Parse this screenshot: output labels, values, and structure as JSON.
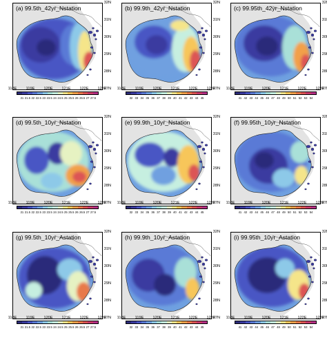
{
  "lat_ticks": [
    "32N",
    "31N",
    "30N",
    "29N",
    "28N",
    "27N"
  ],
  "lon_ticks": [
    "118E",
    "119E",
    "120E",
    "121E",
    "122E",
    "123E"
  ],
  "colormap": [
    "#2c2c7a",
    "#3a3aa0",
    "#4a56c4",
    "#5a7ad6",
    "#6fa0e0",
    "#8dc9e8",
    "#a9e0d8",
    "#c6efe0",
    "#e6f2c2",
    "#f5e58a",
    "#f7c65a",
    "#f2a04a",
    "#e8794a",
    "#dc5554",
    "#c93b6b",
    "#b52f86"
  ],
  "panels": [
    {
      "title": "(a) 99.5th_42yr_Nstation",
      "cbar_labels": [
        "21",
        "21.5",
        "22",
        "22.5",
        "23",
        "23.5",
        "24",
        "24.5",
        "25",
        "25.5",
        "26",
        "26.5",
        "27",
        "27.5"
      ]
    },
    {
      "title": "(b) 99.9th_42yr_Nstation",
      "cbar_labels": [
        "32",
        "33",
        "34",
        "35",
        "36",
        "37",
        "38",
        "39",
        "40",
        "41",
        "42",
        "43",
        "44",
        "45"
      ]
    },
    {
      "title": "(c) 99.95th_42yr_Nstation",
      "cbar_labels": [
        "41",
        "42",
        "43",
        "44",
        "45",
        "46",
        "47",
        "48",
        "49",
        "50",
        "51",
        "52",
        "53",
        "54"
      ]
    },
    {
      "title": "(d) 99.5th_10yr_Nstation",
      "cbar_labels": [
        "21",
        "21.5",
        "22",
        "22.5",
        "23",
        "23.5",
        "24",
        "24.5",
        "25",
        "25.5",
        "26",
        "26.5",
        "27",
        "27.5"
      ]
    },
    {
      "title": "(e) 99.9th_10yr_Nstation",
      "cbar_labels": [
        "32",
        "33",
        "34",
        "35",
        "36",
        "37",
        "38",
        "39",
        "40",
        "41",
        "42",
        "43",
        "44",
        "45"
      ]
    },
    {
      "title": "(f) 99.95th_10yr_Nstation",
      "cbar_labels": [
        "41",
        "42",
        "43",
        "44",
        "45",
        "46",
        "47",
        "48",
        "49",
        "50",
        "51",
        "52",
        "53",
        "54"
      ]
    },
    {
      "title": "(g) 99.5th_10yr_Astation",
      "cbar_labels": [
        "21",
        "21.5",
        "22",
        "22.5",
        "23",
        "23.5",
        "24",
        "24.5",
        "25",
        "25.5",
        "26",
        "26.5",
        "27",
        "27.5"
      ]
    },
    {
      "title": "(h) 99.9th_10yr_Astation",
      "cbar_labels": [
        "32",
        "33",
        "34",
        "35",
        "36",
        "37",
        "38",
        "39",
        "40",
        "41",
        "42",
        "43",
        "44",
        "45"
      ]
    },
    {
      "title": "(i) 99.95th_10yr_Astation",
      "cbar_labels": [
        "41",
        "42",
        "43",
        "44",
        "45",
        "46",
        "47",
        "48",
        "49",
        "50",
        "51",
        "52",
        "53",
        "54"
      ]
    }
  ]
}
